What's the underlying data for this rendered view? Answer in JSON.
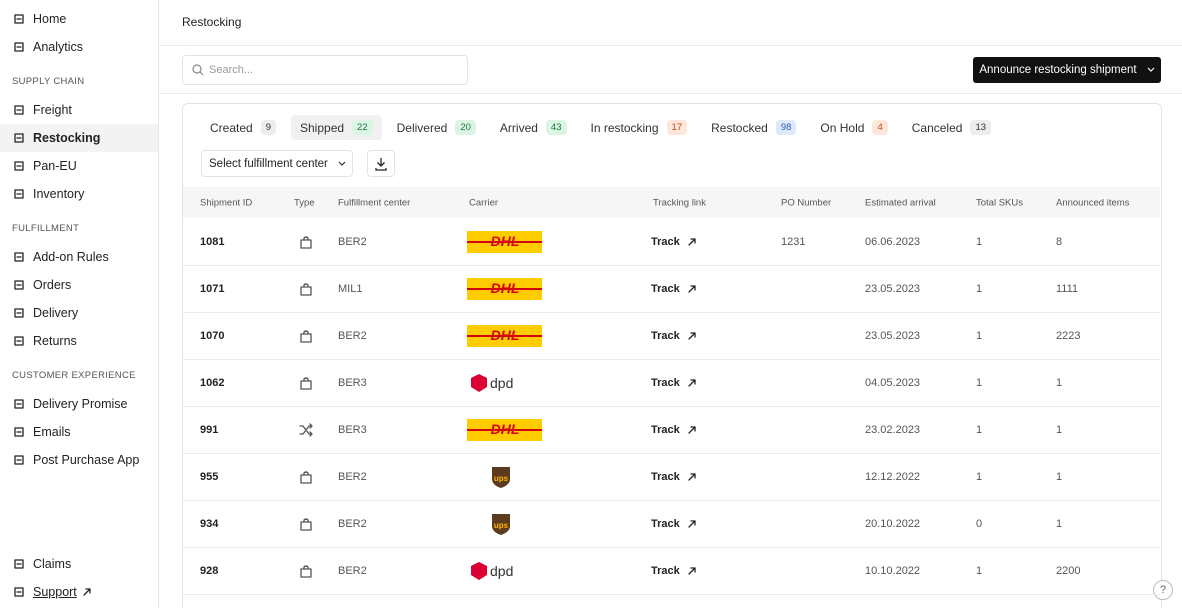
{
  "sidebar": {
    "top": [
      {
        "label": "Home"
      },
      {
        "label": "Analytics"
      }
    ],
    "sections": [
      {
        "title": "SUPPLY CHAIN",
        "items": [
          {
            "label": "Freight"
          },
          {
            "label": "Restocking",
            "active": true
          },
          {
            "label": "Pan-EU"
          },
          {
            "label": "Inventory"
          }
        ]
      },
      {
        "title": "FULFILLMENT",
        "items": [
          {
            "label": "Add-on Rules"
          },
          {
            "label": "Orders"
          },
          {
            "label": "Delivery"
          },
          {
            "label": "Returns"
          }
        ]
      },
      {
        "title": "CUSTOMER EXPERIENCE",
        "items": [
          {
            "label": "Delivery Promise"
          },
          {
            "label": "Emails"
          },
          {
            "label": "Post Purchase App"
          }
        ]
      }
    ],
    "bottom": [
      {
        "label": "Claims"
      },
      {
        "label": "Support",
        "external": true
      }
    ]
  },
  "header": {
    "breadcrumb": "Restocking",
    "search_placeholder": "Search...",
    "button": "Announce restocking shipment"
  },
  "tabs": [
    {
      "label": "Created",
      "count": 9,
      "tone": "grey"
    },
    {
      "label": "Shipped",
      "count": 22,
      "tone": "green",
      "active": true
    },
    {
      "label": "Delivered",
      "count": 20,
      "tone": "green"
    },
    {
      "label": "Arrived",
      "count": 43,
      "tone": "green"
    },
    {
      "label": "In restocking",
      "count": 17,
      "tone": "orange"
    },
    {
      "label": "Restocked",
      "count": 98,
      "tone": "blue"
    },
    {
      "label": "On Hold",
      "count": 4,
      "tone": "orange"
    },
    {
      "label": "Canceled",
      "count": 13,
      "tone": "grey"
    }
  ],
  "filter": "Select fulfillment center",
  "table": {
    "columns": [
      "Shipment ID",
      "Type",
      "Fulfillment center",
      "Carrier",
      "Tracking link",
      "PO Number",
      "Estimated arrival",
      "Total SKUs",
      "Announced items"
    ],
    "rows": [
      {
        "id": "1081",
        "type": "bag",
        "fc": "BER2",
        "carrier": "DHL",
        "tracking": "Track",
        "po": "1231",
        "eta": "06.06.2023",
        "skus": 1,
        "items": 8
      },
      {
        "id": "1071",
        "type": "bag",
        "fc": "MIL1",
        "carrier": "DHL",
        "tracking": "Track",
        "po": null,
        "eta": "23.05.2023",
        "skus": 1,
        "items": 1111
      },
      {
        "id": "1070",
        "type": "bag",
        "fc": "BER2",
        "carrier": "DHL",
        "tracking": "Track",
        "po": null,
        "eta": "23.05.2023",
        "skus": 1,
        "items": 2223
      },
      {
        "id": "1062",
        "type": "bag",
        "fc": "BER3",
        "carrier": "dpd",
        "tracking": "Track",
        "po": null,
        "eta": "04.05.2023",
        "skus": 1,
        "items": 1
      },
      {
        "id": "991",
        "type": "shuffle",
        "fc": "BER3",
        "carrier": "DHL",
        "tracking": "Track",
        "po": null,
        "eta": "23.02.2023",
        "skus": 1,
        "items": 1
      },
      {
        "id": "955",
        "type": "bag",
        "fc": "BER2",
        "carrier": "ups",
        "tracking": "Track",
        "po": null,
        "eta": "12.12.2022",
        "skus": 1,
        "items": 1
      },
      {
        "id": "934",
        "type": "bag",
        "fc": "BER2",
        "carrier": "ups",
        "tracking": "Track",
        "po": null,
        "eta": "20.10.2022",
        "skus": 0,
        "items": 1
      },
      {
        "id": "928",
        "type": "bag",
        "fc": "BER2",
        "carrier": "dpd",
        "tracking": "Track",
        "po": null,
        "eta": "10.10.2022",
        "skus": 1,
        "items": 2200
      }
    ]
  },
  "help": "?"
}
